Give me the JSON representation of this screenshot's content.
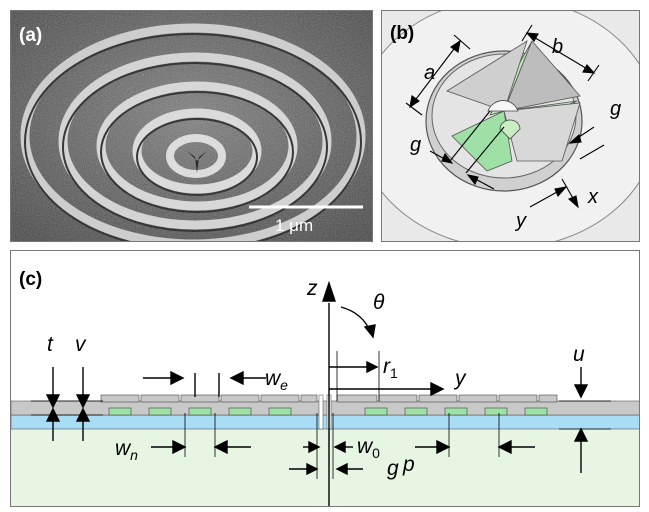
{
  "figure": {
    "panel_a": {
      "label": "(a)",
      "scale_bar_text": "1 μm"
    },
    "panel_b": {
      "label": "(b)",
      "dims": {
        "a": "a",
        "b": "b",
        "g_right": "g",
        "g_left": "g",
        "x": "x",
        "y": "y"
      }
    },
    "panel_c": {
      "label": "(c)",
      "axis_z": "z",
      "angle_theta": "θ",
      "axis_y": "y",
      "t": "t",
      "v": "v",
      "u": "u",
      "w_e_main": "w",
      "w_e_sub": "e",
      "r1_main": "r",
      "r1_sub": "1",
      "w_n_main": "w",
      "w_n_sub": "n",
      "w_0_main": "w",
      "w_0_sub": "0",
      "p": "p",
      "g": "g"
    },
    "colors": {
      "metal": "#c8c8c8",
      "dielectric_blue": "#a9dcf5",
      "substrate_green": "#e6f6e2",
      "groove_green": "#9fe0a6",
      "photo_gray": "#5a5a5a"
    }
  }
}
